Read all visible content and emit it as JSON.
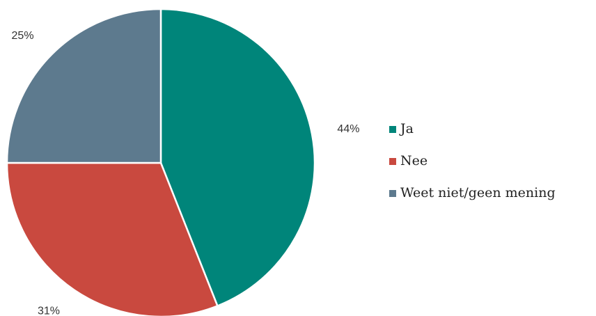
{
  "chart_data": {
    "type": "pie",
    "start_angle_deg": 0,
    "direction": "clockwise",
    "legend_position": "right",
    "slices": [
      {
        "label": "Ja",
        "value": 44,
        "display": "44%",
        "color": "#00857a"
      },
      {
        "label": "Nee",
        "value": 31,
        "display": "31%",
        "color": "#c9493f"
      },
      {
        "label": "Weet niet/geen mening",
        "value": 25,
        "display": "25%",
        "color": "#5d7a8e"
      }
    ]
  }
}
